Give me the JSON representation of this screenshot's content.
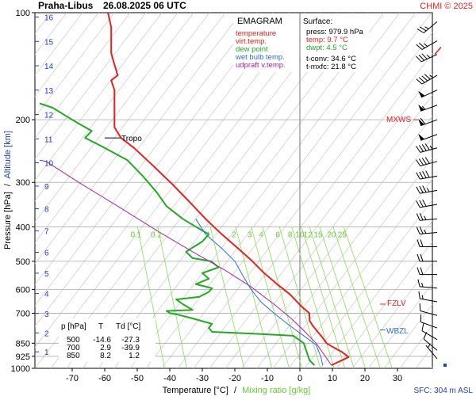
{
  "header": {
    "station": "Praha-Libus",
    "datetime": "26.08.2025 06 UTC",
    "credit": "CHMI © 2025"
  },
  "legend": {
    "title": "EMAGRAM",
    "items": [
      {
        "label": "temperature",
        "color": "#e8201e"
      },
      {
        "label": "virt.temp.",
        "color": "#e8201e"
      },
      {
        "label": "dew point",
        "color": "#22aa22"
      },
      {
        "label": "wet bulb temp.",
        "color": "#2a6fd6"
      },
      {
        "label": "udpraft v.temp.",
        "color": "#aa22aa"
      }
    ]
  },
  "surface": {
    "title": "Surface:",
    "press": "press: 979.9 hPa",
    "temp": "temp: 9.7 °C",
    "dwpt": "dwpt: 4.5 °C",
    "tconv": "t-conv: 34.6 °C",
    "tmxfc": "t-mxfc: 21.8 °C"
  },
  "levels_table": {
    "headers": [
      "p [hPa]",
      "T",
      "Td [°C]"
    ],
    "rows": [
      [
        "500",
        "-14.6",
        "-27.3"
      ],
      [
        "700",
        "2.9",
        "-39.9"
      ],
      [
        "850",
        "8.2",
        "1.2"
      ]
    ]
  },
  "annotations": {
    "tropo": "Tropo",
    "mxws": "MXWS",
    "fzlv": "FZLV",
    "wbzl": "WBZL",
    "sfc": "SFC: 304 m ASL"
  },
  "colors": {
    "temperature": "#e8201e",
    "dewpoint": "#22aa22",
    "wetbulb": "#2a6fd6",
    "parcel": "#aa22aa",
    "altitude": "#1f3fbf",
    "mixing": "#88dd55",
    "grid": "#aaaaaa"
  },
  "chart_data": {
    "type": "line",
    "title": "",
    "xlabel": "Temperature [°C]",
    "xlabel_sep": "/",
    "xlabel2": "Mixing ratio [g/kg]",
    "ylabel": "Pressure [hPa]",
    "ylabel_sep": "/",
    "ylabel2": "Altitude [km]",
    "x_scale": "linear",
    "y_scale": "log",
    "xlim": [
      -80,
      40
    ],
    "ylim": [
      1000,
      100
    ],
    "grid": true,
    "x_ticks": [
      -70,
      -60,
      -50,
      -40,
      -30,
      -20,
      -10,
      0,
      10,
      20,
      30
    ],
    "y_ticks": [
      100,
      200,
      300,
      400,
      500,
      600,
      700,
      850,
      925,
      1000
    ],
    "altitude_ticks_km": [
      1,
      2,
      3,
      4,
      5,
      6,
      7,
      8,
      9,
      10,
      11,
      12,
      13,
      14,
      15,
      16
    ],
    "mixing_ratio_labels": [
      "0.1",
      "0.2",
      "1",
      "2",
      "3",
      "4",
      "6",
      "8",
      "10",
      "12",
      "15",
      "20",
      "25"
    ],
    "tropopause_hpa": 225,
    "levels": {
      "MXWS": 200,
      "FZLV": 660,
      "WBZL": 780
    },
    "series": [
      {
        "name": "temperature",
        "color": "#e8201e",
        "points": [
          [
            9.7,
            980
          ],
          [
            15,
            930
          ],
          [
            13,
            900
          ],
          [
            10,
            870
          ],
          [
            8.2,
            850
          ],
          [
            7,
            820
          ],
          [
            6,
            800
          ],
          [
            4,
            760
          ],
          [
            3,
            735
          ],
          [
            2.9,
            700
          ],
          [
            0.5,
            670
          ],
          [
            -3,
            620
          ],
          [
            -7,
            580
          ],
          [
            -11,
            540
          ],
          [
            -14.6,
            500
          ],
          [
            -19,
            460
          ],
          [
            -24,
            420
          ],
          [
            -29,
            380
          ],
          [
            -34,
            340
          ],
          [
            -39,
            305
          ],
          [
            -45,
            270
          ],
          [
            -51,
            240
          ],
          [
            -55,
            225
          ],
          [
            -57,
            210
          ],
          [
            -57,
            200
          ],
          [
            -57,
            180
          ],
          [
            -57,
            165
          ],
          [
            -58,
            155
          ],
          [
            -56,
            150
          ],
          [
            -57,
            140
          ],
          [
            -58,
            130
          ],
          [
            -58,
            120
          ],
          [
            -58,
            110
          ],
          [
            -59,
            100
          ]
        ]
      },
      {
        "name": "dew point",
        "color": "#22aa22",
        "points": [
          [
            4.5,
            980
          ],
          [
            3,
            950
          ],
          [
            1.2,
            850
          ],
          [
            -2,
            810
          ],
          [
            -13,
            800
          ],
          [
            -27,
            790
          ],
          [
            -28,
            770
          ],
          [
            -27,
            750
          ],
          [
            -34,
            720
          ],
          [
            -38,
            705
          ],
          [
            -39.9,
            700
          ],
          [
            -41,
            690
          ],
          [
            -33,
            685
          ],
          [
            -36,
            660
          ],
          [
            -38,
            640
          ],
          [
            -31,
            630
          ],
          [
            -28,
            610
          ],
          [
            -27,
            595
          ],
          [
            -32,
            580
          ],
          [
            -28,
            560
          ],
          [
            -30,
            540
          ],
          [
            -25,
            520
          ],
          [
            -27.3,
            500
          ],
          [
            -33,
            490
          ],
          [
            -35,
            470
          ],
          [
            -30,
            440
          ],
          [
            -28,
            420
          ],
          [
            -32,
            400
          ],
          [
            -36,
            380
          ],
          [
            -41,
            350
          ],
          [
            -44,
            320
          ],
          [
            -48,
            290
          ],
          [
            -53,
            260
          ],
          [
            -60,
            240
          ],
          [
            -66,
            225
          ],
          [
            -64,
            215
          ],
          [
            -68,
            205
          ],
          [
            -72,
            195
          ],
          [
            -76,
            185
          ],
          [
            -80,
            180
          ]
        ]
      },
      {
        "name": "wet bulb temp.",
        "color": "#2a6fd6",
        "points": [
          [
            7,
            980
          ],
          [
            6.5,
            930
          ],
          [
            5,
            860
          ],
          [
            2,
            820
          ],
          [
            -3,
            760
          ],
          [
            -8,
            700
          ],
          [
            -12,
            650
          ],
          [
            -15,
            600
          ],
          [
            -17,
            560
          ],
          [
            -20,
            500
          ],
          [
            -24,
            460
          ],
          [
            -29,
            420
          ],
          [
            -32,
            380
          ]
        ]
      },
      {
        "name": "udpraft v.temp.",
        "color": "#aa22aa",
        "points": [
          [
            9.7,
            980
          ],
          [
            5,
            850
          ],
          [
            1,
            780
          ],
          [
            -3,
            720
          ],
          [
            -8,
            660
          ],
          [
            -15,
            590
          ],
          [
            -23,
            530
          ],
          [
            -33,
            470
          ],
          [
            -44,
            410
          ],
          [
            -56,
            350
          ],
          [
            -68,
            300
          ],
          [
            -78,
            262
          ],
          [
            -80,
            260
          ]
        ]
      }
    ],
    "wind_barbs": [
      {
        "p": 106,
        "dir": 230,
        "kt": 25
      },
      {
        "p": 120,
        "dir": 240,
        "kt": 25
      },
      {
        "p": 131,
        "dir": 245,
        "kt": 35
      },
      {
        "p": 150,
        "dir": 240,
        "kt": 45
      },
      {
        "p": 165,
        "dir": 245,
        "kt": 50
      },
      {
        "p": 182,
        "dir": 250,
        "kt": 55
      },
      {
        "p": 200,
        "dir": 250,
        "kt": 60
      },
      {
        "p": 220,
        "dir": 250,
        "kt": 50
      },
      {
        "p": 240,
        "dir": 255,
        "kt": 45
      },
      {
        "p": 262,
        "dir": 255,
        "kt": 40
      },
      {
        "p": 288,
        "dir": 260,
        "kt": 40
      },
      {
        "p": 316,
        "dir": 260,
        "kt": 35
      },
      {
        "p": 346,
        "dir": 260,
        "kt": 30
      },
      {
        "p": 380,
        "dir": 265,
        "kt": 25
      },
      {
        "p": 415,
        "dir": 265,
        "kt": 25
      },
      {
        "p": 455,
        "dir": 270,
        "kt": 20
      },
      {
        "p": 500,
        "dir": 270,
        "kt": 20
      },
      {
        "p": 545,
        "dir": 270,
        "kt": 20
      },
      {
        "p": 595,
        "dir": 275,
        "kt": 15
      },
      {
        "p": 650,
        "dir": 280,
        "kt": 15
      },
      {
        "p": 710,
        "dir": 285,
        "kt": 10
      },
      {
        "p": 770,
        "dir": 290,
        "kt": 10
      },
      {
        "p": 830,
        "dir": 300,
        "kt": 10
      },
      {
        "p": 890,
        "dir": 310,
        "kt": 10
      },
      {
        "p": 940,
        "dir": 320,
        "kt": 5
      }
    ]
  }
}
